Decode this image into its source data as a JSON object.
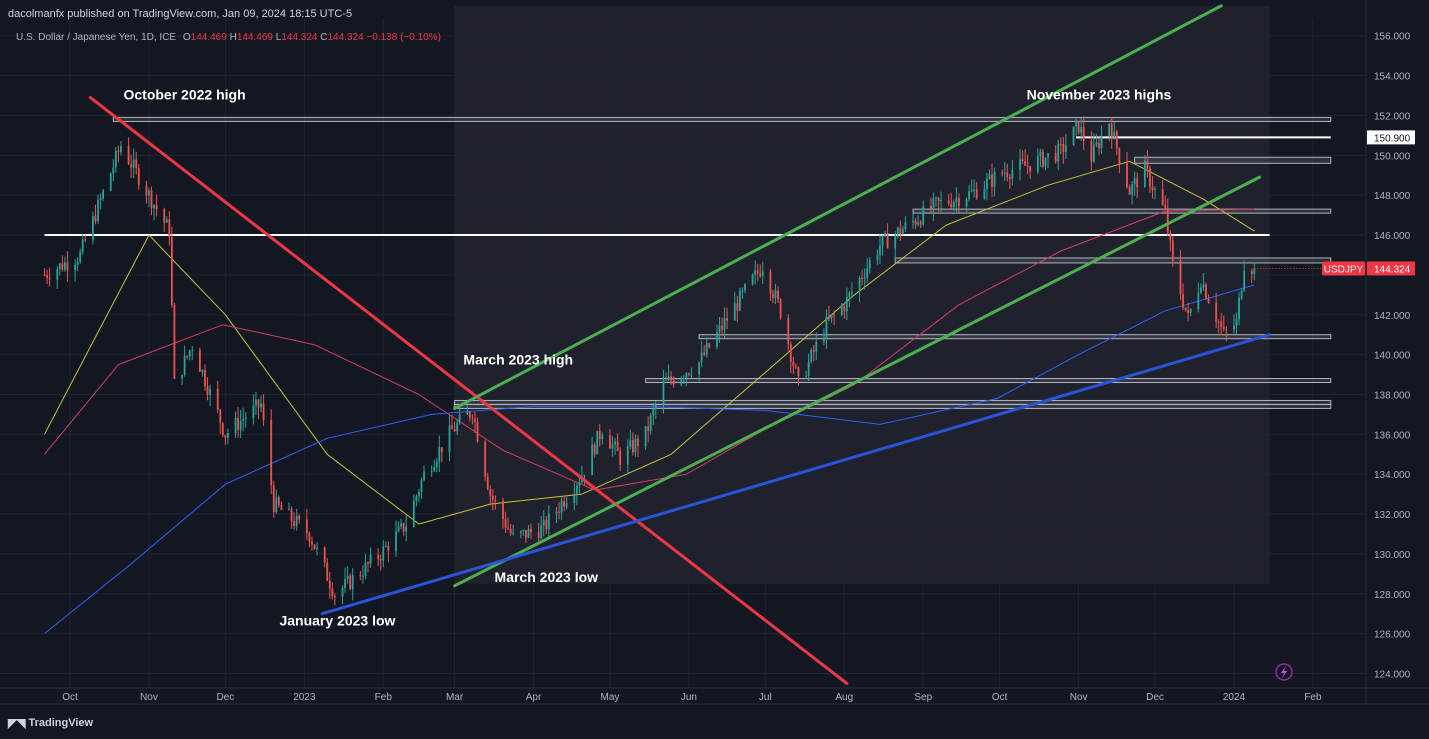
{
  "header": {
    "published_by": "dacolmanfx published on TradingView.com, Jan 09, 2024 18:15 UTC-5"
  },
  "legend": {
    "symbol_desc": "U.S. Dollar / Japanese Yen, 1D, ICE",
    "o_label": "O",
    "o_value": "144.469",
    "h_label": "H",
    "h_value": "144.469",
    "l_label": "L",
    "l_value": "144.324",
    "c_label": "C",
    "c_value": "144.324",
    "change": "−0.138 (−0.10%)"
  },
  "footer": {
    "brand": "TradingView"
  },
  "colors": {
    "background": "#131722",
    "up": "#26a69a",
    "down": "#ef5350",
    "ma_yellow": "#c9c235",
    "ma_pink": "#d63a64",
    "ma_blue": "#2962ff",
    "trend_red": "#f23645",
    "trend_green": "#4caf50",
    "trend_blue": "#2b53d8",
    "level_white": "#ffffff"
  },
  "chart_data": {
    "type": "candlestick",
    "symbol": "USDJPY",
    "timeframe": "1D",
    "y_range": [
      123.0,
      157.5
    ],
    "y_ticks": [
      124,
      126,
      128,
      130,
      132,
      134,
      136,
      138,
      140,
      142,
      144,
      146,
      148,
      150,
      152,
      154,
      156
    ],
    "x_range": [
      "2023-09-21",
      "2024-02-08"
    ],
    "x_ticks": [
      {
        "label": "Oct",
        "date": "2022-10-01"
      },
      {
        "label": "Nov",
        "date": "2022-11-01"
      },
      {
        "label": "Dec",
        "date": "2022-12-01"
      },
      {
        "label": "2023",
        "date": "2023-01-01"
      },
      {
        "label": "Feb",
        "date": "2023-02-01"
      },
      {
        "label": "Mar",
        "date": "2023-03-01"
      },
      {
        "label": "Apr",
        "date": "2023-04-01"
      },
      {
        "label": "May",
        "date": "2023-05-01"
      },
      {
        "label": "Jun",
        "date": "2023-06-01"
      },
      {
        "label": "Jul",
        "date": "2023-07-01"
      },
      {
        "label": "Aug",
        "date": "2023-08-01"
      },
      {
        "label": "Sep",
        "date": "2023-09-01"
      },
      {
        "label": "Oct",
        "date": "2023-10-01"
      },
      {
        "label": "Nov",
        "date": "2023-11-01"
      },
      {
        "label": "Dec",
        "date": "2023-12-01"
      },
      {
        "label": "2024",
        "date": "2024-01-01"
      },
      {
        "label": "Feb",
        "date": "2024-02-01"
      }
    ],
    "price_path": [
      [
        "2022-09-21",
        144.0
      ],
      [
        "2022-10-05",
        145.0
      ],
      [
        "2022-10-21",
        150.5
      ],
      [
        "2022-11-09",
        146.2
      ],
      [
        "2022-11-11",
        138.5
      ],
      [
        "2022-11-18",
        140.5
      ],
      [
        "2022-12-01",
        136.0
      ],
      [
        "2022-12-08",
        136.8
      ],
      [
        "2022-12-15",
        137.5
      ],
      [
        "2022-12-20",
        132.5
      ],
      [
        "2023-01-03",
        131.0
      ],
      [
        "2023-01-13",
        128.0
      ],
      [
        "2023-01-18",
        128.5
      ],
      [
        "2023-01-31",
        130.0
      ],
      [
        "2023-02-10",
        131.5
      ],
      [
        "2023-02-17",
        134.0
      ],
      [
        "2023-02-28",
        136.2
      ],
      [
        "2023-03-08",
        137.2
      ],
      [
        "2023-03-15",
        133.0
      ],
      [
        "2023-03-24",
        130.8
      ],
      [
        "2023-04-05",
        131.3
      ],
      [
        "2023-04-20",
        134.0
      ],
      [
        "2023-04-28",
        136.3
      ],
      [
        "2023-05-05",
        134.8
      ],
      [
        "2023-05-15",
        136.0
      ],
      [
        "2023-05-22",
        138.5
      ],
      [
        "2023-06-05",
        139.6
      ],
      [
        "2023-06-16",
        141.8
      ],
      [
        "2023-06-30",
        144.5
      ],
      [
        "2023-07-07",
        142.2
      ],
      [
        "2023-07-14",
        138.5
      ],
      [
        "2023-07-25",
        141.5
      ],
      [
        "2023-08-01",
        142.5
      ],
      [
        "2023-08-15",
        145.5
      ],
      [
        "2023-08-25",
        146.4
      ],
      [
        "2023-09-06",
        147.5
      ],
      [
        "2023-09-20",
        148.1
      ],
      [
        "2023-10-03",
        149.2
      ],
      [
        "2023-10-12",
        149.5
      ],
      [
        "2023-10-25",
        150.2
      ],
      [
        "2023-11-01",
        151.5
      ],
      [
        "2023-11-06",
        149.9
      ],
      [
        "2023-11-13",
        151.7
      ],
      [
        "2023-11-21",
        148.2
      ],
      [
        "2023-11-27",
        149.3
      ],
      [
        "2023-12-05",
        147.1
      ],
      [
        "2023-12-08",
        144.5
      ],
      [
        "2023-12-14",
        141.8
      ],
      [
        "2023-12-19",
        143.8
      ],
      [
        "2023-12-28",
        141.0
      ],
      [
        "2024-01-02",
        141.6
      ],
      [
        "2024-01-05",
        144.6
      ],
      [
        "2024-01-09",
        144.324
      ]
    ],
    "moving_averages": [
      {
        "color": "#c9c235",
        "points": [
          [
            "2022-09-21",
            136.0
          ],
          [
            "2022-11-01",
            146.0
          ],
          [
            "2022-12-01",
            142.0
          ],
          [
            "2023-01-10",
            135.0
          ],
          [
            "2023-02-15",
            131.5
          ],
          [
            "2023-03-15",
            132.5
          ],
          [
            "2023-04-20",
            133.0
          ],
          [
            "2023-05-25",
            135.0
          ],
          [
            "2023-06-30",
            139.0
          ],
          [
            "2023-08-05",
            143.0
          ],
          [
            "2023-09-10",
            146.5
          ],
          [
            "2023-10-20",
            148.5
          ],
          [
            "2023-11-21",
            149.7
          ],
          [
            "2023-12-20",
            147.8
          ],
          [
            "2024-01-09",
            146.2
          ]
        ]
      },
      {
        "color": "#d63a64",
        "points": [
          [
            "2022-09-21",
            135.0
          ],
          [
            "2022-10-20",
            139.5
          ],
          [
            "2022-11-30",
            141.5
          ],
          [
            "2023-01-05",
            140.5
          ],
          [
            "2023-02-15",
            138.0
          ],
          [
            "2023-03-20",
            135.2
          ],
          [
            "2023-04-25",
            133.2
          ],
          [
            "2023-05-31",
            134.0
          ],
          [
            "2023-06-30",
            136.2
          ],
          [
            "2023-08-05",
            138.5
          ],
          [
            "2023-09-15",
            142.5
          ],
          [
            "2023-10-25",
            145.2
          ],
          [
            "2023-12-05",
            147.2
          ],
          [
            "2024-01-09",
            147.3
          ]
        ]
      },
      {
        "color": "#2962ff",
        "points": [
          [
            "2022-09-21",
            126.0
          ],
          [
            "2022-10-25",
            129.5
          ],
          [
            "2022-12-01",
            133.5
          ],
          [
            "2023-01-10",
            135.8
          ],
          [
            "2023-02-20",
            137.0
          ],
          [
            "2023-04-01",
            137.4
          ],
          [
            "2023-05-15",
            137.4
          ],
          [
            "2023-07-01",
            137.2
          ],
          [
            "2023-08-15",
            136.5
          ],
          [
            "2023-09-30",
            137.8
          ],
          [
            "2023-11-01",
            140.0
          ],
          [
            "2023-12-05",
            142.2
          ],
          [
            "2024-01-09",
            143.5
          ]
        ]
      }
    ],
    "trendlines": [
      {
        "color": "#f23645",
        "width": 3,
        "from": [
          "2022-10-09",
          152.9
        ],
        "to": [
          "2023-08-02",
          123.5
        ]
      },
      {
        "color": "#4caf50",
        "width": 3,
        "from": [
          "2023-03-01",
          137.3
        ],
        "to": [
          "2023-12-27",
          157.5
        ]
      },
      {
        "color": "#4caf50",
        "width": 3,
        "from": [
          "2023-03-01",
          128.4
        ],
        "to": [
          "2024-01-11",
          148.9
        ]
      },
      {
        "color": "#2b53d8",
        "width": 3,
        "from": [
          "2023-01-08",
          127.0
        ],
        "to": [
          "2024-01-15",
          141.0
        ]
      }
    ],
    "horizontal_lines": [
      {
        "price": 146.0,
        "from": "2022-09-21",
        "to": "2024-01-15",
        "color": "#ffffff",
        "width": 2
      },
      {
        "price": 150.9,
        "from": "2023-10-31",
        "to": "2024-02-08",
        "color": "#ffffff",
        "width": 2
      }
    ],
    "zones": [
      {
        "from": "2022-10-18",
        "to": "2024-02-08",
        "top": 151.9,
        "bottom": 151.7
      },
      {
        "from": "2023-11-23",
        "to": "2024-02-08",
        "top": 149.9,
        "bottom": 149.6
      },
      {
        "from": "2023-08-28",
        "to": "2024-02-08",
        "top": 147.3,
        "bottom": 147.1
      },
      {
        "from": "2023-08-21",
        "to": "2024-02-08",
        "top": 144.85,
        "bottom": 144.6
      },
      {
        "from": "2023-06-05",
        "to": "2024-02-08",
        "top": 141.0,
        "bottom": 140.8
      },
      {
        "from": "2023-05-15",
        "to": "2024-02-08",
        "top": 138.8,
        "bottom": 138.6
      },
      {
        "from": "2023-03-01",
        "to": "2024-02-08",
        "top": 137.7,
        "bottom": 137.5
      },
      {
        "from": "2023-03-01",
        "to": "2024-02-08",
        "top": 137.5,
        "bottom": 137.3
      }
    ],
    "range_box": {
      "from": "2023-03-01",
      "to": "2024-01-15",
      "top": 157.5,
      "bottom": 128.5
    },
    "annotations": [
      {
        "text": "October 2022 high",
        "date": "2022-10-22",
        "price": 152.8,
        "anchor": "start"
      },
      {
        "text": "November 2023 highs",
        "date": "2023-11-09",
        "price": 152.8,
        "anchor": "middle"
      },
      {
        "text": "March 2023 high",
        "date": "2023-03-26",
        "price": 139.5,
        "anchor": "middle"
      },
      {
        "text": "March 2023 low",
        "date": "2023-04-06",
        "price": 128.6,
        "anchor": "middle"
      },
      {
        "text": "January 2023 low",
        "date": "2023-01-14",
        "price": 126.4,
        "anchor": "middle"
      }
    ],
    "price_labels": [
      {
        "text": "156.000",
        "price": 156
      },
      {
        "text": "154.000",
        "price": 154
      },
      {
        "text": "152.000",
        "price": 152
      },
      {
        "text": "150.900",
        "price": 150.9,
        "boxed": true
      },
      {
        "text": "150.000",
        "price": 150
      },
      {
        "text": "148.000",
        "price": 148
      },
      {
        "text": "146.000",
        "price": 146
      },
      {
        "text": "USDJPY",
        "price": 144.324,
        "badge": "left"
      },
      {
        "text": "144.324",
        "price": 144.324,
        "badge": "right"
      },
      {
        "text": "142.000",
        "price": 142
      },
      {
        "text": "140.000",
        "price": 140
      },
      {
        "text": "138.000",
        "price": 138
      },
      {
        "text": "136.000",
        "price": 136
      },
      {
        "text": "134.000",
        "price": 134
      },
      {
        "text": "132.000",
        "price": 132
      },
      {
        "text": "130.000",
        "price": 130
      },
      {
        "text": "128.000",
        "price": 128
      },
      {
        "text": "126.000",
        "price": 126
      },
      {
        "text": "124.000",
        "price": 124
      }
    ]
  }
}
